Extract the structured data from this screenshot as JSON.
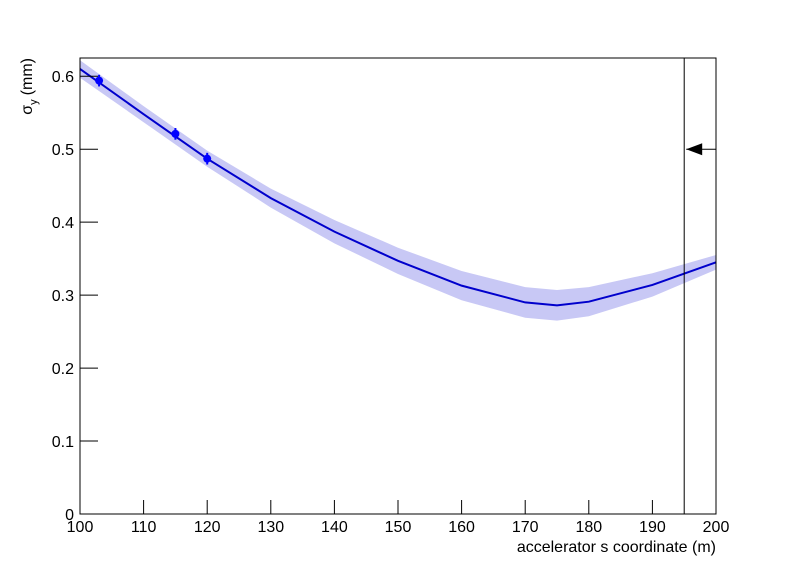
{
  "chart_data": {
    "type": "line",
    "xlabel": "accelerator s coordinate (m)",
    "ylabel": {
      "symbol": "σ",
      "subscript": "y",
      "unit": "(mm)"
    },
    "x": [
      100,
      110,
      120,
      130,
      140,
      150,
      160,
      170,
      175,
      180,
      190,
      200
    ],
    "series": [
      {
        "color": "#0000cc",
        "values": [
          0.61,
          0.548,
          0.487,
          0.433,
          0.387,
          0.347,
          0.313,
          0.29,
          0.286,
          0.291,
          0.314,
          0.345
        ]
      }
    ],
    "band": {
      "color": "#c8c8f5",
      "upper": [
        0.622,
        0.559,
        0.498,
        0.446,
        0.403,
        0.365,
        0.333,
        0.311,
        0.307,
        0.311,
        0.33,
        0.355
      ],
      "lower": [
        0.598,
        0.537,
        0.476,
        0.42,
        0.371,
        0.329,
        0.293,
        0.269,
        0.265,
        0.271,
        0.298,
        0.335
      ]
    },
    "points": {
      "color": "#0000ff",
      "x": [
        103,
        115,
        120
      ],
      "values": [
        0.594,
        0.521,
        0.487
      ],
      "errors": [
        0.008,
        0.008,
        0.008
      ]
    },
    "vline": 195,
    "arrow_y": 0.5,
    "xlim": [
      100,
      200
    ],
    "xticks": [
      100,
      110,
      120,
      130,
      140,
      150,
      160,
      170,
      180,
      190,
      200
    ],
    "ylim": [
      0,
      0.625
    ],
    "yticks": [
      0,
      0.1,
      0.2,
      0.3,
      0.4,
      0.5,
      0.6
    ]
  }
}
